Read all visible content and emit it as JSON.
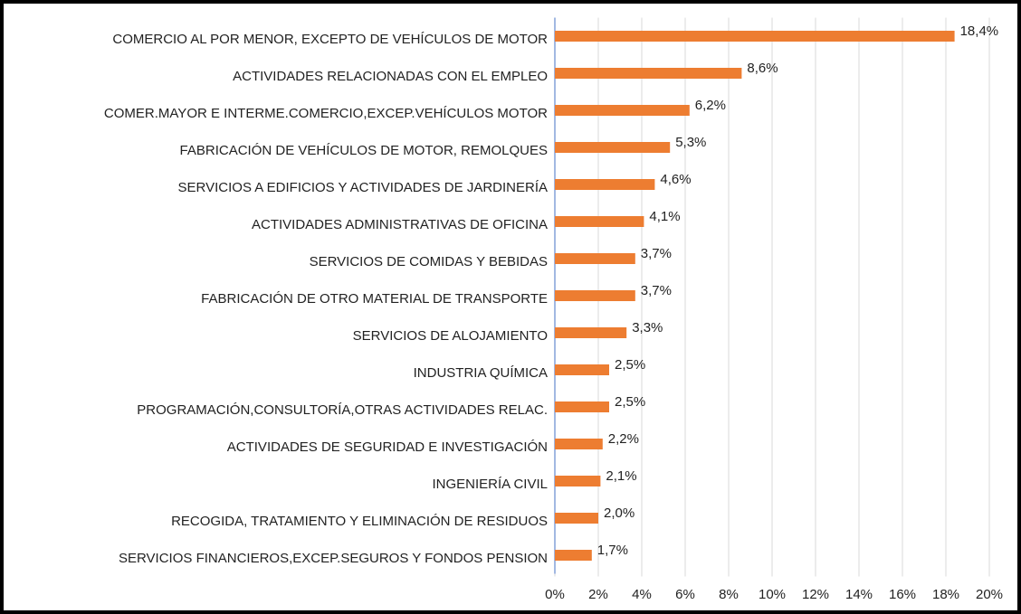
{
  "chart_data": {
    "type": "bar",
    "orientation": "horizontal",
    "color": "#ed7d31",
    "grid": true,
    "categories": [
      "COMERCIO AL POR MENOR, EXCEPTO DE VEHÍCULOS DE MOTOR",
      "ACTIVIDADES RELACIONADAS CON EL EMPLEO",
      "COMER.MAYOR E INTERME.COMERCIO,EXCEP.VEHÍCULOS MOTOR",
      "FABRICACIÓN DE VEHÍCULOS DE MOTOR, REMOLQUES",
      "SERVICIOS A EDIFICIOS Y ACTIVIDADES DE JARDINERÍA",
      "ACTIVIDADES ADMINISTRATIVAS DE OFICINA",
      "SERVICIOS DE COMIDAS Y BEBIDAS",
      "FABRICACIÓN DE OTRO MATERIAL DE TRANSPORTE",
      "SERVICIOS DE ALOJAMIENTO",
      "INDUSTRIA QUÍMICA",
      "PROGRAMACIÓN,CONSULTORÍA,OTRAS ACTIVIDADES RELAC.",
      "ACTIVIDADES DE SEGURIDAD E INVESTIGACIÓN",
      "INGENIERÍA CIVIL",
      "RECOGIDA, TRATAMIENTO Y ELIMINACIÓN DE RESIDUOS",
      "SERVICIOS FINANCIEROS,EXCEP.SEGUROS Y FONDOS PENSION"
    ],
    "values": [
      18.4,
      8.6,
      6.2,
      5.3,
      4.6,
      4.1,
      3.7,
      3.7,
      3.3,
      2.5,
      2.5,
      2.2,
      2.1,
      2.0,
      1.7
    ],
    "value_labels": [
      "18,4%",
      "8,6%",
      "6,2%",
      "5,3%",
      "4,6%",
      "4,1%",
      "3,7%",
      "3,7%",
      "3,3%",
      "2,5%",
      "2,5%",
      "2,2%",
      "2,1%",
      "2,0%",
      "1,7%"
    ],
    "xlim": [
      0,
      20
    ],
    "xticks": [
      {
        "value": 0,
        "label": "0%"
      },
      {
        "value": 2,
        "label": "2%"
      },
      {
        "value": 4,
        "label": "4%"
      },
      {
        "value": 6,
        "label": "6%"
      },
      {
        "value": 8,
        "label": "8%"
      },
      {
        "value": 10,
        "label": "10%"
      },
      {
        "value": 12,
        "label": "12%"
      },
      {
        "value": 14,
        "label": "14%"
      },
      {
        "value": 16,
        "label": "16%"
      },
      {
        "value": 18,
        "label": "18%"
      },
      {
        "value": 20,
        "label": "20%"
      }
    ]
  }
}
